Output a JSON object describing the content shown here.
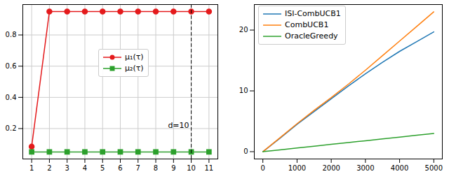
{
  "chart_data": [
    {
      "type": "line",
      "x": [
        1,
        2,
        3,
        4,
        5,
        6,
        7,
        8,
        9,
        10,
        11
      ],
      "series": [
        {
          "name": "μ₁(τ)",
          "color": "#e41a1c",
          "marker": "circle",
          "values": [
            0.085,
            0.95,
            0.95,
            0.95,
            0.95,
            0.95,
            0.95,
            0.95,
            0.95,
            0.95,
            0.95
          ]
        },
        {
          "name": "μ₂(τ)",
          "color": "#2ca02c",
          "marker": "square",
          "values": [
            0.05,
            0.05,
            0.05,
            0.05,
            0.05,
            0.05,
            0.05,
            0.05,
            0.05,
            0.05,
            0.05
          ]
        }
      ],
      "xlim": [
        0.5,
        11.5
      ],
      "xticks": [
        1,
        2,
        3,
        4,
        5,
        6,
        7,
        8,
        9,
        10,
        11
      ],
      "ylim": [
        0.005,
        0.995
      ],
      "yticks": [
        0.2,
        0.4,
        0.6,
        0.8
      ],
      "grid": true,
      "legend": "center",
      "annotations": [
        {
          "text": "d=10",
          "x": 10,
          "y": 0.22,
          "line_style": "dashed"
        }
      ]
    },
    {
      "type": "line",
      "x": [
        0,
        500,
        1000,
        1500,
        2000,
        2500,
        3000,
        3500,
        4000,
        4500,
        5000
      ],
      "series": [
        {
          "name": "ISI-CombUCB1",
          "color": "#1f77b4",
          "values": [
            0,
            2.2,
            4.5,
            6.6,
            8.7,
            10.8,
            12.8,
            14.7,
            16.5,
            18.1,
            19.7
          ]
        },
        {
          "name": "CombUCB1",
          "color": "#ff7f0e",
          "values": [
            0,
            2.3,
            4.6,
            6.8,
            8.9,
            11.1,
            13.4,
            15.8,
            18.2,
            20.6,
            23.0
          ]
        },
        {
          "name": "OracleGreedy",
          "color": "#2ca02c",
          "values": [
            0,
            0.3,
            0.6,
            0.9,
            1.2,
            1.5,
            1.8,
            2.1,
            2.4,
            2.7,
            3.0
          ]
        }
      ],
      "xlim": [
        -250,
        5250
      ],
      "xticks": [
        0,
        1000,
        2000,
        3000,
        4000,
        5000
      ],
      "ylim": [
        -1.2,
        24.2
      ],
      "yticks": [
        0,
        10,
        20
      ],
      "grid": false,
      "legend": "upper left"
    }
  ]
}
